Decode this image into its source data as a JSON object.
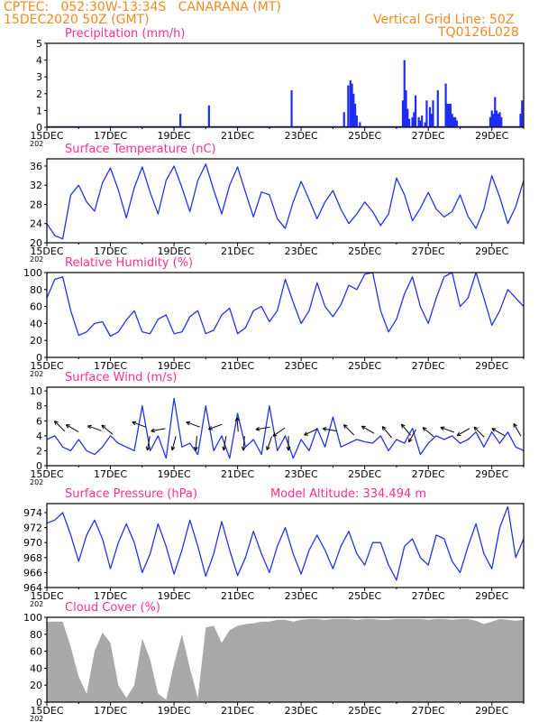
{
  "header": {
    "line1": "CPTEC:   052:30W-13:34S   CANARANA (MT)",
    "line2": "15DEC2020 50Z (GMT)",
    "right1": "Vertical Grid Line: 50Z",
    "right2": "TQ0126L028"
  },
  "colors": {
    "header": "#f08a24",
    "title": "#ff2d95",
    "line": "#2433e6",
    "bar": "#1f2df2",
    "cloud": "#a9a9a9",
    "frame": "#000000"
  },
  "x_labels": [
    "15DEC",
    "17DEC",
    "19DEC",
    "21DEC",
    "23DEC",
    "25DEC",
    "27DEC",
    "29DEC"
  ],
  "x_sublabel": "202",
  "chart_data": [
    {
      "id": "precip",
      "type": "bar",
      "title": "Precipitation (mm/h)",
      "ylim": [
        0,
        5
      ],
      "yticks": [
        0,
        1,
        2,
        3,
        4,
        5
      ],
      "xlim": [
        0,
        15
      ],
      "x": [
        4.2,
        5.1,
        7.7,
        9.35,
        9.48,
        9.55,
        9.6,
        9.65,
        9.7,
        9.75,
        9.85,
        11.2,
        11.25,
        11.3,
        11.35,
        11.4,
        11.5,
        11.55,
        11.6,
        11.7,
        11.75,
        11.8,
        11.9,
        11.95,
        12.05,
        12.1,
        12.15,
        12.3,
        12.55,
        12.6,
        12.65,
        12.7,
        12.75,
        12.8,
        12.85,
        12.9,
        13.95,
        14.0,
        14.05,
        14.1,
        14.15,
        14.2,
        14.25,
        14.3,
        14.9,
        14.95
      ],
      "values": [
        0.8,
        1.3,
        2.2,
        0.9,
        2.5,
        2.8,
        2.6,
        2.0,
        1.4,
        0.7,
        0.3,
        1.6,
        4.0,
        2.2,
        1.1,
        0.5,
        0.6,
        0.9,
        1.9,
        0.6,
        0.4,
        0.7,
        0.3,
        1.6,
        1.2,
        0.8,
        1.6,
        2.2,
        2.6,
        1.4,
        1.4,
        1.4,
        0.8,
        0.6,
        0.6,
        0.4,
        0.6,
        1.0,
        0.8,
        1.8,
        1.0,
        0.8,
        0.9,
        0.6,
        0.8,
        1.6
      ]
    },
    {
      "id": "temp",
      "type": "line",
      "title": "Surface Temperature (nC)",
      "ylim": [
        20,
        37.5
      ],
      "yticks": [
        20,
        24,
        28,
        32,
        36
      ],
      "xlim": [
        0,
        15
      ],
      "x": [
        0.0,
        0.25,
        0.5,
        0.75,
        1.0,
        1.25,
        1.5,
        1.75,
        2.0,
        2.25,
        2.5,
        2.75,
        3.0,
        3.25,
        3.5,
        3.75,
        4.0,
        4.25,
        4.5,
        4.75,
        5.0,
        5.25,
        5.5,
        5.75,
        6.0,
        6.25,
        6.5,
        6.75,
        7.0,
        7.25,
        7.5,
        7.75,
        8.0,
        8.25,
        8.5,
        8.75,
        9.0,
        9.25,
        9.5,
        9.75,
        10.0,
        10.25,
        10.5,
        10.75,
        11.0,
        11.25,
        11.5,
        11.75,
        12.0,
        12.25,
        12.5,
        12.75,
        13.0,
        13.25,
        13.5,
        13.75,
        14.0,
        14.25,
        14.5,
        14.75,
        15.0
      ],
      "values": [
        24.0,
        21.5,
        20.8,
        30.0,
        32.0,
        28.5,
        26.6,
        32.5,
        35.6,
        31.0,
        25.2,
        31.5,
        35.8,
        30.5,
        26.0,
        33.0,
        36.0,
        31.5,
        26.5,
        33.0,
        36.4,
        31.0,
        26.0,
        32.0,
        35.8,
        30.5,
        25.4,
        30.6,
        30.0,
        25.0,
        23.0,
        28.5,
        32.8,
        29.0,
        25.0,
        28.5,
        30.9,
        27.0,
        24.0,
        26.0,
        28.5,
        26.5,
        23.6,
        26.0,
        33.5,
        30.0,
        24.6,
        27.2,
        30.5,
        27.0,
        25.4,
        26.5,
        30.0,
        25.5,
        23.0,
        27.0,
        34.0,
        29.5,
        24.0,
        27.5,
        33.0
      ]
    },
    {
      "id": "rh",
      "type": "line",
      "title": "Relative Humidity (%)",
      "ylim": [
        0,
        100
      ],
      "yticks": [
        0,
        20,
        40,
        60,
        80,
        100
      ],
      "xlim": [
        0,
        15
      ],
      "x": [
        0.0,
        0.25,
        0.5,
        0.75,
        1.0,
        1.25,
        1.5,
        1.75,
        2.0,
        2.25,
        2.5,
        2.75,
        3.0,
        3.25,
        3.5,
        3.75,
        4.0,
        4.25,
        4.5,
        4.75,
        5.0,
        5.25,
        5.5,
        5.75,
        6.0,
        6.25,
        6.5,
        6.75,
        7.0,
        7.25,
        7.5,
        7.75,
        8.0,
        8.25,
        8.5,
        8.75,
        9.0,
        9.25,
        9.5,
        9.75,
        10.0,
        10.25,
        10.5,
        10.75,
        11.0,
        11.25,
        11.5,
        11.75,
        12.0,
        12.25,
        12.5,
        12.75,
        13.0,
        13.25,
        13.5,
        13.75,
        14.0,
        14.25,
        14.5,
        14.75,
        15.0
      ],
      "values": [
        70.0,
        92.0,
        95.0,
        55.0,
        26.0,
        30.0,
        40.0,
        42.0,
        25.0,
        30.0,
        44.0,
        55.0,
        30.0,
        28.0,
        45.0,
        50.0,
        28.0,
        30.0,
        48.0,
        55.0,
        28.0,
        32.0,
        50.0,
        58.0,
        28.0,
        35.0,
        55.0,
        60.0,
        42.0,
        55.0,
        92.0,
        65.0,
        40.0,
        55.0,
        88.0,
        60.0,
        48.0,
        62.0,
        85.0,
        80.0,
        98.0,
        100.0,
        55.0,
        30.0,
        45.0,
        75.0,
        95.0,
        60.0,
        40.0,
        70.0,
        95.0,
        100.0,
        60.0,
        70.0,
        100.0,
        70.0,
        38.0,
        55.0,
        80.0,
        70.0,
        60.0
      ]
    },
    {
      "id": "wind",
      "type": "line",
      "title": "Surface Wind (m/s)",
      "ylim": [
        0,
        10.5
      ],
      "yticks": [
        0,
        2,
        4,
        6,
        8,
        10
      ],
      "xlim": [
        0,
        15
      ],
      "x": [
        0.0,
        0.25,
        0.5,
        0.75,
        1.0,
        1.25,
        1.5,
        1.75,
        2.0,
        2.25,
        2.5,
        2.75,
        3.0,
        3.25,
        3.5,
        3.75,
        4.0,
        4.25,
        4.5,
        4.75,
        5.0,
        5.25,
        5.5,
        5.75,
        6.0,
        6.25,
        6.5,
        6.75,
        7.0,
        7.25,
        7.5,
        7.75,
        8.0,
        8.25,
        8.5,
        8.75,
        9.0,
        9.25,
        9.5,
        9.75,
        10.0,
        10.25,
        10.5,
        10.75,
        11.0,
        11.25,
        11.5,
        11.75,
        12.0,
        12.25,
        12.5,
        12.75,
        13.0,
        13.25,
        13.5,
        13.75,
        14.0,
        14.25,
        14.5,
        14.75,
        15.0
      ],
      "values": [
        3.5,
        4.0,
        2.5,
        2.0,
        3.5,
        2.0,
        1.5,
        2.5,
        4.0,
        3.0,
        2.5,
        2.0,
        8.0,
        2.0,
        4.0,
        1.0,
        9.0,
        2.5,
        3.0,
        1.5,
        8.0,
        2.0,
        4.0,
        1.0,
        7.0,
        2.5,
        3.5,
        1.5,
        8.0,
        2.0,
        4.0,
        1.0,
        3.5,
        2.0,
        5.0,
        2.5,
        6.5,
        2.5,
        3.0,
        3.5,
        3.2,
        3.0,
        4.0,
        2.0,
        3.5,
        3.0,
        5.0,
        1.5,
        3.0,
        4.0,
        3.5,
        4.0,
        3.0,
        3.5,
        4.5,
        2.5,
        4.5,
        3.0,
        4.5,
        2.5,
        2.0
      ],
      "arrows": [
        {
          "x": 0.4,
          "v": 5.3,
          "dir": 135
        },
        {
          "x": 0.8,
          "v": 5.0,
          "dir": 150
        },
        {
          "x": 1.5,
          "v": 5.0,
          "dir": 160
        },
        {
          "x": 1.9,
          "v": 4.8,
          "dir": 140
        },
        {
          "x": 2.9,
          "v": 5.5,
          "dir": 160
        },
        {
          "x": 3.2,
          "v": 3.0,
          "dir": 260
        },
        {
          "x": 3.5,
          "v": 4.8,
          "dir": 190
        },
        {
          "x": 4.0,
          "v": 3.0,
          "dir": 255
        },
        {
          "x": 4.6,
          "v": 5.5,
          "dir": 160
        },
        {
          "x": 4.7,
          "v": 3.0,
          "dir": 265
        },
        {
          "x": 5.3,
          "v": 5.2,
          "dir": 200
        },
        {
          "x": 5.6,
          "v": 3.0,
          "dir": 260
        },
        {
          "x": 6.0,
          "v": 5.5,
          "dir": 95
        },
        {
          "x": 6.2,
          "v": 3.0,
          "dir": 265
        },
        {
          "x": 6.8,
          "v": 5.0,
          "dir": 190
        },
        {
          "x": 7.0,
          "v": 3.0,
          "dir": 250
        },
        {
          "x": 7.3,
          "v": 4.5,
          "dir": 215
        },
        {
          "x": 7.6,
          "v": 3.0,
          "dir": 270
        },
        {
          "x": 8.3,
          "v": 4.5,
          "dir": 205
        },
        {
          "x": 8.9,
          "v": 4.8,
          "dir": 170
        },
        {
          "x": 9.5,
          "v": 4.8,
          "dir": 135
        },
        {
          "x": 10.1,
          "v": 4.8,
          "dir": 150
        },
        {
          "x": 10.7,
          "v": 4.5,
          "dir": 130
        },
        {
          "x": 11.3,
          "v": 4.8,
          "dir": 130
        },
        {
          "x": 11.5,
          "v": 4.0,
          "dir": 240
        },
        {
          "x": 12.0,
          "v": 4.5,
          "dir": 140
        },
        {
          "x": 12.6,
          "v": 4.8,
          "dir": 160
        },
        {
          "x": 13.1,
          "v": 4.5,
          "dir": 210
        },
        {
          "x": 13.6,
          "v": 4.5,
          "dir": 135
        },
        {
          "x": 14.2,
          "v": 4.5,
          "dir": 150
        },
        {
          "x": 14.8,
          "v": 4.8,
          "dir": 120
        }
      ]
    },
    {
      "id": "pressure",
      "type": "line",
      "title": "Surface Pressure (hPa)",
      "subtitle": "Model Altitude: 334.494 m",
      "ylim": [
        964,
        975.2
      ],
      "yticks": [
        964,
        966,
        968,
        970,
        972,
        974
      ],
      "xlim": [
        0,
        15
      ],
      "x": [
        0.0,
        0.25,
        0.5,
        0.75,
        1.0,
        1.25,
        1.5,
        1.75,
        2.0,
        2.25,
        2.5,
        2.75,
        3.0,
        3.25,
        3.5,
        3.75,
        4.0,
        4.25,
        4.5,
        4.75,
        5.0,
        5.25,
        5.5,
        5.75,
        6.0,
        6.25,
        6.5,
        6.75,
        7.0,
        7.25,
        7.5,
        7.75,
        8.0,
        8.25,
        8.5,
        8.75,
        9.0,
        9.25,
        9.5,
        9.75,
        10.0,
        10.25,
        10.5,
        10.75,
        11.0,
        11.25,
        11.5,
        11.75,
        12.0,
        12.25,
        12.5,
        12.75,
        13.0,
        13.25,
        13.5,
        13.75,
        14.0,
        14.25,
        14.5,
        14.75,
        15.0
      ],
      "values": [
        972.6,
        973.0,
        974.0,
        971.0,
        967.5,
        971.0,
        973.0,
        970.5,
        966.5,
        970.0,
        972.5,
        970.0,
        966.0,
        968.5,
        972.5,
        969.5,
        965.8,
        969.0,
        973.0,
        969.5,
        965.5,
        968.5,
        972.8,
        969.0,
        965.6,
        968.0,
        971.5,
        968.5,
        966.0,
        969.5,
        972.0,
        968.5,
        965.8,
        969.0,
        971.0,
        969.0,
        966.5,
        969.5,
        971.5,
        968.5,
        967.0,
        970.0,
        970.0,
        967.0,
        965.0,
        969.5,
        970.5,
        968.0,
        967.0,
        971.0,
        970.5,
        967.5,
        966.0,
        969.5,
        972.5,
        968.5,
        966.5,
        972.0,
        974.8,
        968.0,
        970.5
      ]
    },
    {
      "id": "cloud",
      "type": "area",
      "title": "Cloud Cover (%)",
      "ylim": [
        0,
        100
      ],
      "yticks": [
        0,
        20,
        40,
        60,
        80,
        100
      ],
      "xlim": [
        0,
        15
      ],
      "x": [
        0.0,
        0.25,
        0.5,
        0.75,
        1.0,
        1.25,
        1.5,
        1.75,
        2.0,
        2.25,
        2.5,
        2.75,
        3.0,
        3.25,
        3.5,
        3.75,
        4.0,
        4.25,
        4.5,
        4.75,
        5.0,
        5.25,
        5.5,
        5.75,
        6.0,
        6.25,
        6.5,
        6.75,
        7.0,
        7.25,
        7.5,
        7.75,
        8.0,
        8.25,
        8.5,
        8.75,
        9.0,
        9.25,
        9.5,
        9.75,
        10.0,
        10.25,
        10.5,
        10.75,
        11.0,
        11.25,
        11.5,
        11.75,
        12.0,
        12.25,
        12.5,
        12.75,
        13.0,
        13.25,
        13.5,
        13.75,
        14.0,
        14.25,
        14.5,
        14.75,
        15.0
      ],
      "values": [
        95.0,
        95.0,
        95.0,
        65.0,
        30.0,
        10.0,
        60.0,
        82.0,
        70.0,
        20.0,
        5.0,
        20.0,
        75.0,
        50.0,
        10.0,
        3.0,
        45.0,
        80.0,
        40.0,
        5.0,
        88.0,
        90.0,
        70.0,
        85.0,
        90.0,
        92.0,
        93.0,
        95.0,
        95.0,
        97.0,
        97.0,
        95.0,
        97.0,
        98.0,
        98.0,
        97.0,
        98.0,
        98.0,
        98.0,
        97.0,
        98.0,
        98.0,
        97.0,
        97.0,
        98.0,
        98.0,
        98.0,
        98.0,
        97.0,
        98.0,
        98.0,
        97.0,
        98.0,
        98.0,
        96.0,
        92.0,
        95.0,
        98.0,
        97.0,
        96.0,
        97.0
      ]
    }
  ]
}
